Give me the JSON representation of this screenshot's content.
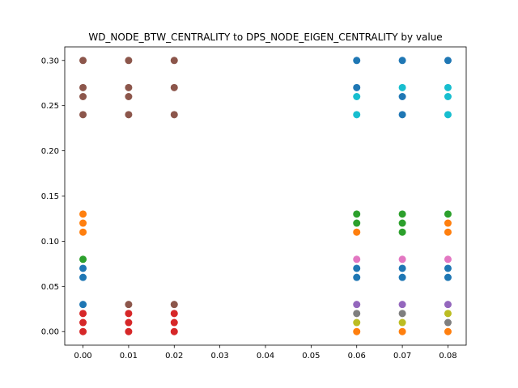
{
  "chart_data": {
    "type": "scatter",
    "title": "WD_NODE_BTW_CENTRALITY to DPS_NODE_EIGEN_CENTRALITY by value",
    "xlabel": "",
    "ylabel": "",
    "xlim": [
      -0.004,
      0.084
    ],
    "ylim": [
      -0.015,
      0.315
    ],
    "xticks": [
      0.0,
      0.01,
      0.02,
      0.03,
      0.04,
      0.05,
      0.06,
      0.07,
      0.08
    ],
    "xtick_labels": [
      "0.00",
      "0.01",
      "0.02",
      "0.03",
      "0.04",
      "0.05",
      "0.06",
      "0.07",
      "0.08"
    ],
    "yticks": [
      0.0,
      0.05,
      0.1,
      0.15,
      0.2,
      0.25,
      0.3
    ],
    "ytick_labels": [
      "0.00",
      "0.05",
      "0.10",
      "0.15",
      "0.20",
      "0.25",
      "0.30"
    ],
    "grid": false,
    "legend": "none",
    "series": [
      {
        "color": "#1f77b4",
        "points": [
          [
            0.0,
            0.03
          ],
          [
            0.0,
            0.06
          ],
          [
            0.0,
            0.07
          ],
          [
            0.06,
            0.06
          ],
          [
            0.06,
            0.07
          ],
          [
            0.06,
            0.27
          ],
          [
            0.06,
            0.3
          ],
          [
            0.07,
            0.06
          ],
          [
            0.07,
            0.07
          ],
          [
            0.07,
            0.24
          ],
          [
            0.07,
            0.26
          ],
          [
            0.07,
            0.3
          ],
          [
            0.08,
            0.06
          ],
          [
            0.08,
            0.07
          ],
          [
            0.08,
            0.3
          ]
        ]
      },
      {
        "color": "#ff7f0e",
        "points": [
          [
            0.0,
            0.11
          ],
          [
            0.0,
            0.12
          ],
          [
            0.0,
            0.13
          ],
          [
            0.06,
            0.0
          ],
          [
            0.06,
            0.11
          ],
          [
            0.07,
            0.0
          ],
          [
            0.08,
            0.0
          ],
          [
            0.08,
            0.11
          ],
          [
            0.08,
            0.12
          ]
        ]
      },
      {
        "color": "#2ca02c",
        "points": [
          [
            0.0,
            0.08
          ],
          [
            0.06,
            0.12
          ],
          [
            0.06,
            0.13
          ],
          [
            0.07,
            0.11
          ],
          [
            0.07,
            0.12
          ],
          [
            0.07,
            0.13
          ],
          [
            0.08,
            0.13
          ]
        ]
      },
      {
        "color": "#d62728",
        "points": [
          [
            0.0,
            0.0
          ],
          [
            0.0,
            0.01
          ],
          [
            0.0,
            0.02
          ],
          [
            0.01,
            0.0
          ],
          [
            0.01,
            0.01
          ],
          [
            0.01,
            0.02
          ],
          [
            0.02,
            0.0
          ],
          [
            0.02,
            0.01
          ],
          [
            0.02,
            0.02
          ]
        ]
      },
      {
        "color": "#9467bd",
        "points": [
          [
            0.06,
            0.03
          ],
          [
            0.07,
            0.03
          ],
          [
            0.08,
            0.03
          ]
        ]
      },
      {
        "color": "#8c564b",
        "points": [
          [
            0.0,
            0.24
          ],
          [
            0.0,
            0.26
          ],
          [
            0.0,
            0.27
          ],
          [
            0.0,
            0.3
          ],
          [
            0.01,
            0.03
          ],
          [
            0.01,
            0.24
          ],
          [
            0.01,
            0.26
          ],
          [
            0.01,
            0.27
          ],
          [
            0.01,
            0.3
          ],
          [
            0.02,
            0.03
          ],
          [
            0.02,
            0.24
          ],
          [
            0.02,
            0.27
          ],
          [
            0.02,
            0.3
          ]
        ]
      },
      {
        "color": "#e377c2",
        "points": [
          [
            0.06,
            0.08
          ],
          [
            0.07,
            0.08
          ],
          [
            0.08,
            0.08
          ]
        ]
      },
      {
        "color": "#7f7f7f",
        "points": [
          [
            0.06,
            0.02
          ],
          [
            0.07,
            0.02
          ],
          [
            0.08,
            0.01
          ]
        ]
      },
      {
        "color": "#bcbd22",
        "points": [
          [
            0.06,
            0.01
          ],
          [
            0.07,
            0.01
          ],
          [
            0.08,
            0.02
          ]
        ]
      },
      {
        "color": "#17becf",
        "points": [
          [
            0.06,
            0.24
          ],
          [
            0.06,
            0.26
          ],
          [
            0.07,
            0.27
          ],
          [
            0.08,
            0.24
          ],
          [
            0.08,
            0.26
          ],
          [
            0.08,
            0.27
          ]
        ]
      }
    ]
  }
}
